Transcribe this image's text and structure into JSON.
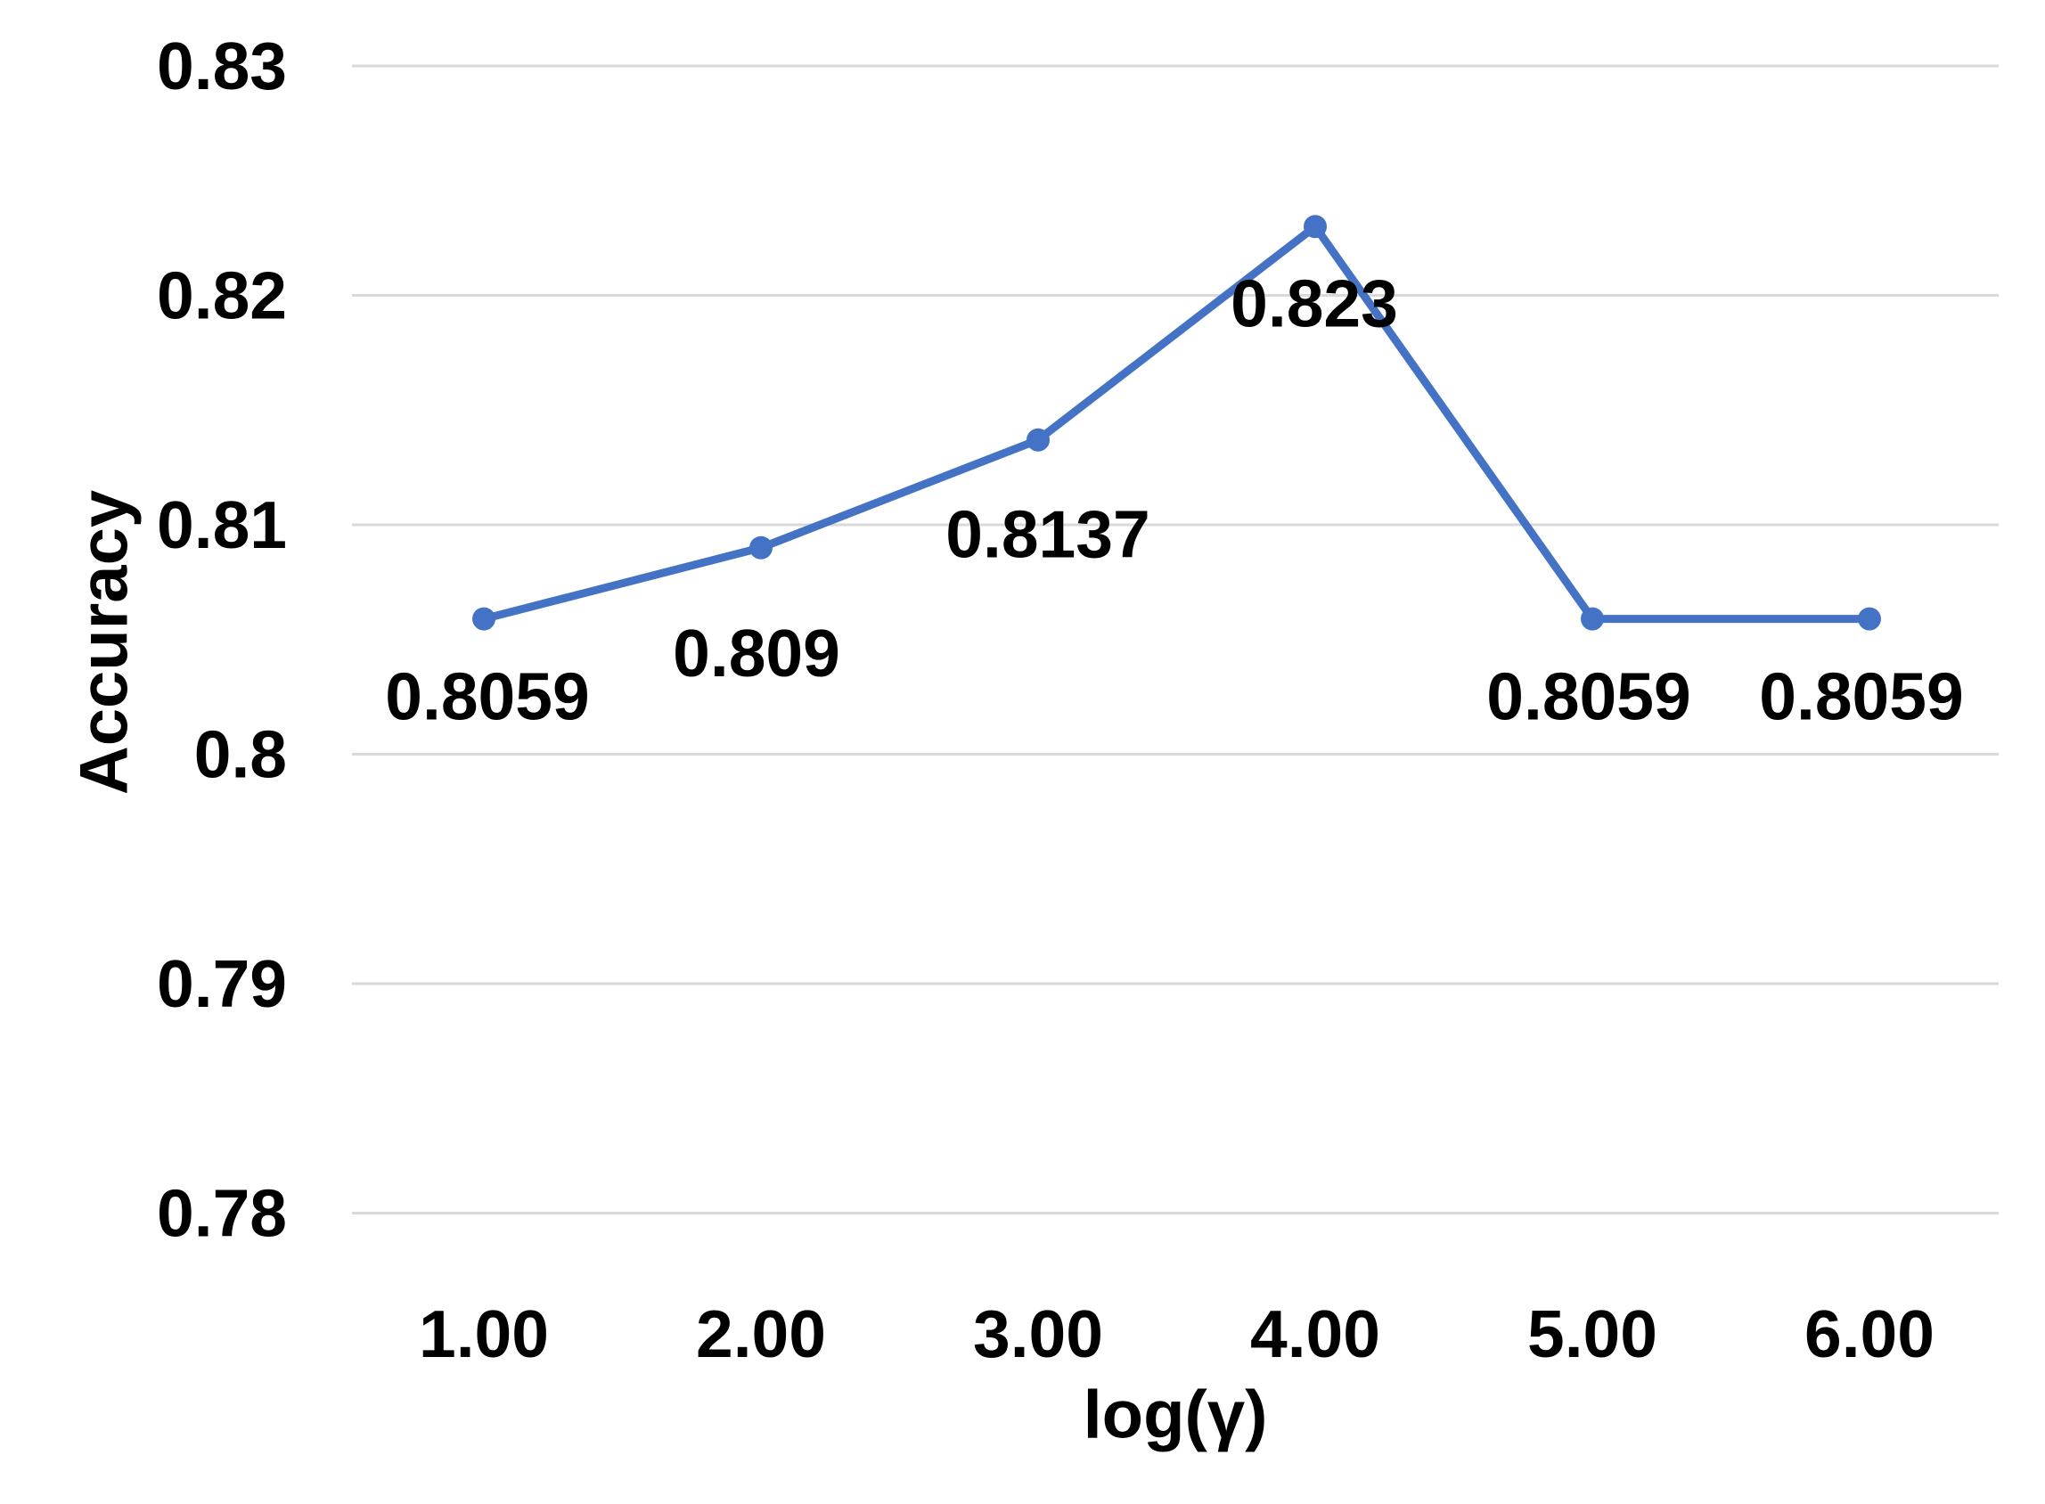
{
  "chart_data": {
    "type": "line",
    "title": "",
    "xlabel": "log(γ)",
    "ylabel": "Accuracy",
    "x": [
      1.0,
      2.0,
      3.0,
      4.0,
      5.0,
      6.0
    ],
    "x_tick_labels": [
      "1.00",
      "2.00",
      "3.00",
      "4.00",
      "5.00",
      "6.00"
    ],
    "y_ticks": [
      0.78,
      0.79,
      0.8,
      0.81,
      0.82,
      0.83
    ],
    "y_tick_labels": [
      "0.78",
      "0.79",
      "0.8",
      "0.81",
      "0.82",
      "0.83"
    ],
    "ylim": [
      0.78,
      0.83
    ],
    "grid": true,
    "legend": false,
    "series": [
      {
        "name": "Accuracy",
        "values": [
          0.8059,
          0.809,
          0.8137,
          0.823,
          0.8059,
          0.8059
        ]
      }
    ],
    "data_labels": [
      "0.8059",
      "0.809",
      "0.8137",
      "0.823",
      "0.8059",
      "0.8059"
    ],
    "colors": {
      "line": "#4472C4",
      "marker": "#4472C4",
      "gridline": "#D9D9D9",
      "text": "#000000",
      "background": "#FFFFFF"
    }
  }
}
